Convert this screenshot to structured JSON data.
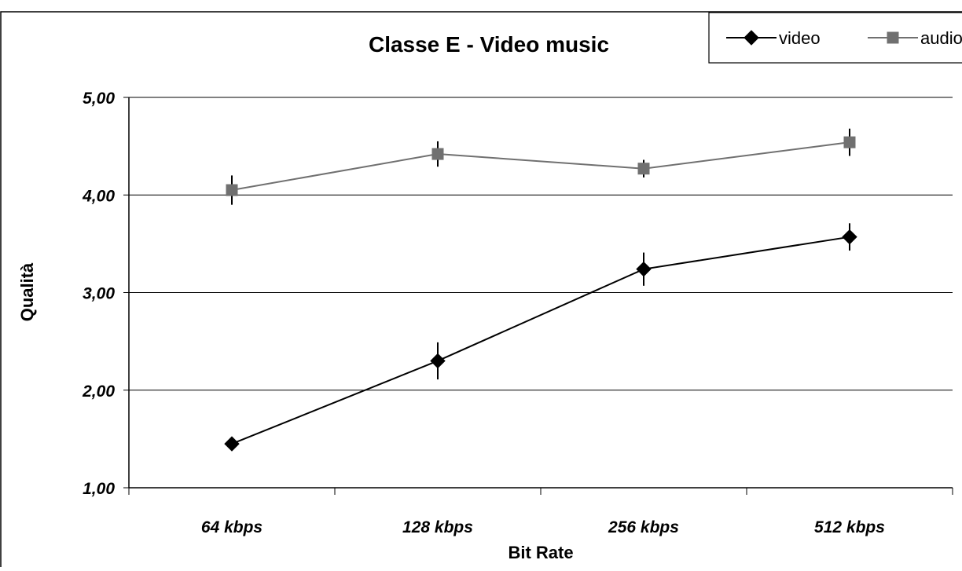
{
  "chart_data": {
    "type": "line",
    "title": "Classe E - Video music",
    "xlabel": "Bit Rate",
    "ylabel": "Qualità",
    "categories": [
      "64 kbps",
      "128 kbps",
      "256 kbps",
      "512 kbps"
    ],
    "ylim": [
      1,
      5
    ],
    "yticks": [
      1,
      2,
      3,
      4,
      5
    ],
    "ytick_labels": [
      "1,00",
      "2,00",
      "3,00",
      "4,00",
      "5,00"
    ],
    "grid": true,
    "legend_position": "top-right",
    "series": [
      {
        "name": "video",
        "color": "#000000",
        "marker": "diamond",
        "values": [
          1.45,
          2.3,
          3.24,
          3.57
        ],
        "error": [
          0.03,
          0.19,
          0.17,
          0.14
        ]
      },
      {
        "name": "audio",
        "color": "#707070",
        "marker": "square",
        "values": [
          4.05,
          4.42,
          4.27,
          4.54
        ],
        "error": [
          0.15,
          0.13,
          0.09,
          0.14
        ]
      }
    ]
  }
}
